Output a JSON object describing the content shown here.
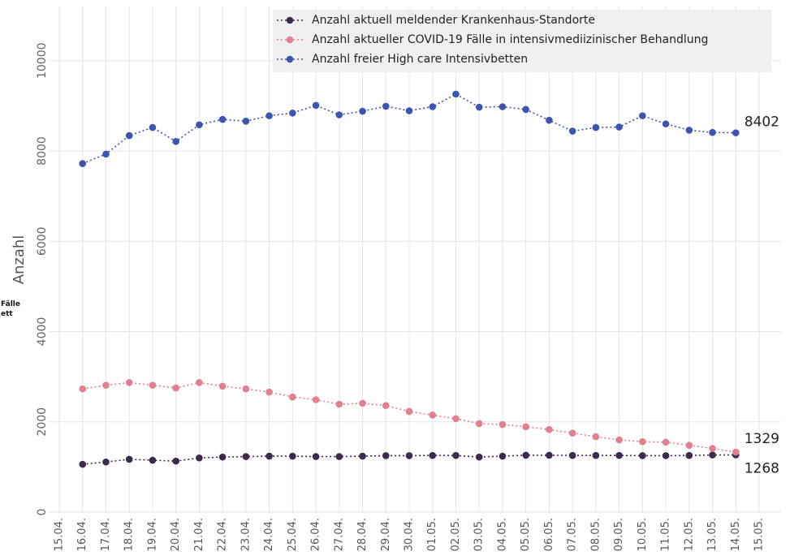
{
  "chart_data": {
    "type": "line",
    "ylabel": "Anzahl",
    "ylim": [
      0,
      11200
    ],
    "yticks": [
      0,
      2000,
      4000,
      6000,
      8000,
      10000
    ],
    "grid": true,
    "legend_position": "top-right",
    "x": [
      "15.04.",
      "16.04.",
      "17.04.",
      "18.04.",
      "19.04.",
      "20.04.",
      "21.04.",
      "22.04.",
      "23.04.",
      "24.04.",
      "25.04.",
      "26.04.",
      "27.04.",
      "28.04.",
      "29.04.",
      "30.04.",
      "01.05.",
      "02.05.",
      "03.05.",
      "04.05.",
      "05.05.",
      "06.05.",
      "07.05.",
      "08.05.",
      "09.05.",
      "10.05.",
      "11.05.",
      "12.05.",
      "13.05.",
      "14.05.",
      "15.05."
    ],
    "series": [
      {
        "name": "Anzahl aktuell meldender Krankenhaus-Standorte",
        "color": "#3d2a4d",
        "values": [
          null,
          1060,
          1110,
          1170,
          1150,
          1130,
          1200,
          1220,
          1230,
          1240,
          1240,
          1230,
          1230,
          1240,
          1250,
          1250,
          1255,
          1255,
          1220,
          1240,
          1260,
          1260,
          1255,
          1255,
          1255,
          1250,
          1250,
          1255,
          1265,
          1268,
          null
        ]
      },
      {
        "name": "Anzahl aktueller COVID-19 Fälle in intensivmediizinischer Behandlung",
        "color": "#e08090",
        "values": [
          null,
          2730,
          2810,
          2870,
          2810,
          2750,
          2870,
          2790,
          2730,
          2660,
          2550,
          2490,
          2390,
          2410,
          2360,
          2230,
          2150,
          2070,
          1960,
          1940,
          1890,
          1830,
          1750,
          1670,
          1600,
          1560,
          1550,
          1480,
          1410,
          1329,
          null
        ]
      },
      {
        "name": "Anzahl freier High care Intensivbetten",
        "color": "#3d55b0",
        "values": [
          null,
          7720,
          7930,
          8340,
          8520,
          8210,
          8580,
          8700,
          8660,
          8780,
          8840,
          9010,
          8800,
          8880,
          8990,
          8890,
          8980,
          9260,
          8970,
          8980,
          8920,
          8680,
          8440,
          8520,
          8530,
          8780,
          8600,
          8460,
          8410,
          8402,
          null
        ]
      }
    ],
    "end_labels": [
      "8402",
      "1329",
      "1268"
    ]
  },
  "side_text": [
    "Fälle",
    "ett"
  ]
}
